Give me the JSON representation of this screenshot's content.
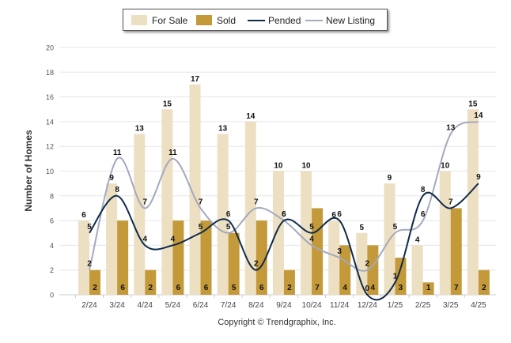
{
  "copyright": "Copyright © Trendgraphix, Inc.",
  "chart_data": {
    "type": "bar",
    "categories": [
      "2/24",
      "3/24",
      "4/24",
      "5/24",
      "6/24",
      "7/24",
      "8/24",
      "9/24",
      "10/24",
      "11/24",
      "12/24",
      "1/25",
      "2/25",
      "3/25",
      "4/25"
    ],
    "series": [
      {
        "name": "For Sale",
        "kind": "bar",
        "color": "#eddfc2",
        "values": [
          6,
          9,
          13,
          15,
          17,
          13,
          14,
          10,
          10,
          6,
          5,
          9,
          4,
          10,
          15
        ]
      },
      {
        "name": "Sold",
        "kind": "bar",
        "color": "#c4993a",
        "values": [
          2,
          6,
          2,
          6,
          6,
          5,
          6,
          2,
          7,
          4,
          4,
          3,
          1,
          7,
          2
        ]
      },
      {
        "name": "Pended",
        "kind": "line",
        "color": "#0f2a4a",
        "values": [
          5,
          8,
          4,
          4,
          5,
          6,
          2,
          6,
          5,
          6,
          0,
          1,
          8,
          7,
          9
        ]
      },
      {
        "name": "New Listing",
        "kind": "line",
        "color": "#a3a9bf",
        "values": [
          2,
          11,
          7,
          11,
          7,
          5,
          7,
          6,
          4,
          3,
          2,
          5,
          6,
          13,
          14
        ]
      }
    ],
    "ylabel": "Number of Homes",
    "xlabel": "",
    "ylim": [
      0,
      20
    ],
    "yticks": [
      0,
      2,
      4,
      6,
      8,
      10,
      12,
      14,
      16,
      18,
      20
    ],
    "grid": true,
    "legend": "top-center"
  }
}
